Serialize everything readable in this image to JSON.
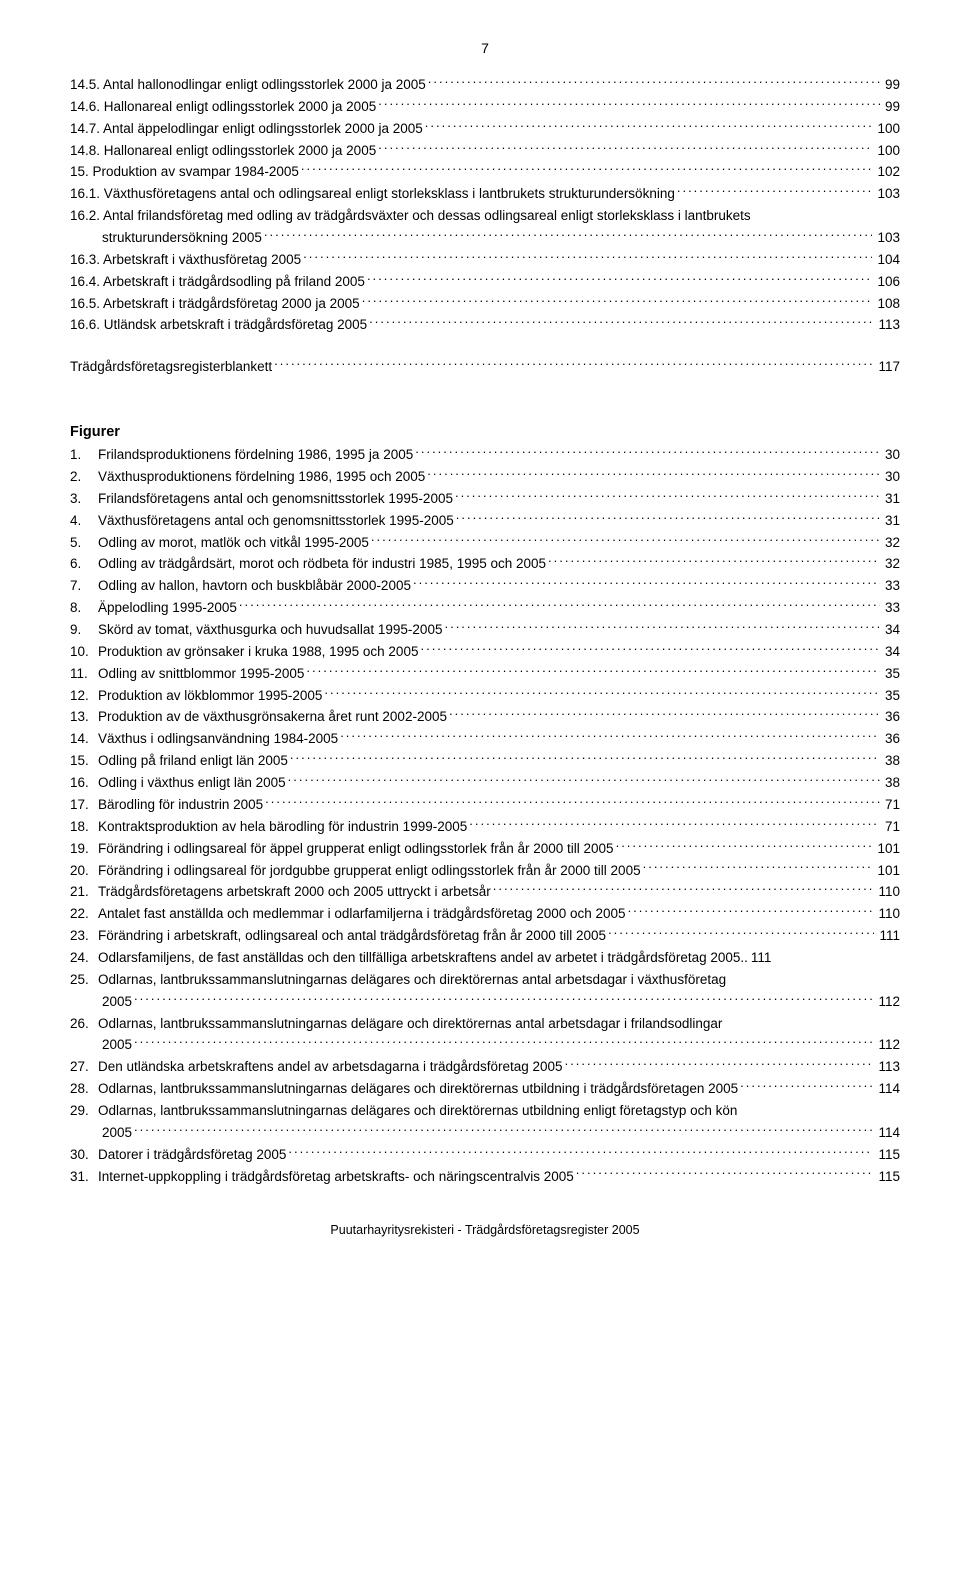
{
  "page_number": "7",
  "toc_upper": [
    {
      "label": "14.5. Antal hallonodlingar enligt odlingsstorlek 2000 ja 2005",
      "page": "99",
      "indent": 0
    },
    {
      "label": "14.6. Hallonareal enligt odlingsstorlek 2000 ja 2005",
      "page": "99",
      "indent": 0
    },
    {
      "label": "14.7. Antal äppelodlingar enligt odlingsstorlek 2000 ja 2005",
      "page": "100",
      "indent": 0
    },
    {
      "label": "14.8. Hallonareal enligt odlingsstorlek 2000 ja 2005",
      "page": "100",
      "indent": 0
    },
    {
      "label": "15. Produktion av svampar 1984-2005",
      "page": "102",
      "indent": 0
    },
    {
      "label": "16.1. Växthusföretagens antal och odlingsareal enligt storleksklass i lantbrukets strukturundersökning",
      "page": "103",
      "indent": 0
    },
    {
      "label": "16.2. Antal frilandsföretag med odling av trädgårdsväxter och dessas odlingsareal enligt storleksklass i lantbrukets",
      "page": "",
      "indent": 0,
      "nopage": true
    },
    {
      "label": "strukturundersökning 2005",
      "page": "103",
      "indent": 1
    },
    {
      "label": "16.3. Arbetskraft i växthusföretag 2005",
      "page": "104",
      "indent": 0
    },
    {
      "label": "16.4. Arbetskraft i trädgårdsodling på friland 2005",
      "page": "106",
      "indent": 0
    },
    {
      "label": "16.5. Arbetskraft i trädgårdsföretag 2000 ja  2005",
      "page": "108",
      "indent": 0
    },
    {
      "label": "16.6. Utländsk arbetskraft i trädgårdsföretag  2005",
      "page": "113",
      "indent": 0
    }
  ],
  "toc_mid": [
    {
      "label": "Trädgårdsföretagsregisterblankett",
      "page": "117",
      "indent": 0
    }
  ],
  "figurer_title": "Figurer",
  "figurer": [
    {
      "num": "1.",
      "label": "Frilandsproduktionens fördelning 1986, 1995 ja 2005",
      "page": "30"
    },
    {
      "num": "2.",
      "label": "Växthusproduktionens fördelning 1986, 1995 och 2005",
      "page": "30"
    },
    {
      "num": "3.",
      "label": "Frilandsföretagens antal och genomsnittsstorlek 1995-2005",
      "page": "31"
    },
    {
      "num": "4.",
      "label": "Växthusföretagens antal och genomsnittsstorlek 1995-2005",
      "page": "31"
    },
    {
      "num": "5.",
      "label": "Odling av morot, matlök och vitkål 1995-2005",
      "page": "32"
    },
    {
      "num": "6.",
      "label": "Odling av trädgårdsärt, morot och rödbeta för industri 1985, 1995 och  2005",
      "page": "32"
    },
    {
      "num": "7.",
      "label": "Odling av hallon, havtorn och buskblåbär 2000-2005",
      "page": "33"
    },
    {
      "num": "8.",
      "label": "Äppelodling 1995-2005",
      "page": "33"
    },
    {
      "num": "9.",
      "label": "Skörd av tomat, växthusgurka och huvudsallat 1995-2005",
      "page": "34"
    },
    {
      "num": "10.",
      "label": "Produktion av grönsaker i kruka 1988, 1995 och 2005",
      "page": "34"
    },
    {
      "num": "11.",
      "label": "Odling av snittblommor 1995-2005",
      "page": "35"
    },
    {
      "num": "12.",
      "label": "Produktion av lökblommor 1995-2005",
      "page": "35"
    },
    {
      "num": "13.",
      "label": "Produktion av de växthusgrönsakerna året runt 2002-2005",
      "page": "36"
    },
    {
      "num": "14.",
      "label": "Växthus i odlingsanvändning 1984-2005",
      "page": "36"
    },
    {
      "num": "15.",
      "label": "Odling på friland enligt län 2005",
      "page": "38"
    },
    {
      "num": "16.",
      "label": "Odling i växthus enligt län 2005",
      "page": "38"
    },
    {
      "num": "17.",
      "label": "Bärodling för industrin 2005",
      "page": "71"
    },
    {
      "num": "18.",
      "label": "Kontraktsproduktion av hela bärodling för industrin 1999-2005",
      "page": "71"
    },
    {
      "num": "19.",
      "label": "Förändring i odlingsareal för äppel grupperat enligt odlingsstorlek från år 2000 till 2005",
      "page": "101"
    },
    {
      "num": "20.",
      "label": "Förändring i odlingsareal för jordgubbe grupperat enligt odlingsstorlek från år 2000 till 2005",
      "page": "101"
    },
    {
      "num": "21.",
      "label": "Trädgårdsföretagens arbetskraft 2000 och 2005 uttryckt i arbetsår",
      "page": "110"
    },
    {
      "num": "22.",
      "label": "Antalet fast anställda och medlemmar i odlarfamiljerna i trädgårdsföretag 2000 och 2005",
      "page": "110"
    },
    {
      "num": "23.",
      "label": "Förändring i arbetskraft, odlingsareal och antal trädgårdsföretag från år 2000 till 2005",
      "page": "111"
    },
    {
      "num": "24.",
      "label": "Odlarsfamiljens, de fast anställdas och den tillfälliga arbetskraftens andel av arbetet i trädgårdsföretag 2005",
      "page": "111",
      "tight": true
    },
    {
      "num": "25.",
      "label": "Odlarnas, lantbrukssammanslutningarnas delägares och direktörernas antal arbetsdagar i växthusföretag",
      "page": "",
      "nopage": true
    },
    {
      "num": "",
      "label": "2005",
      "page": "112",
      "cont": true
    },
    {
      "num": "26.",
      "label": "Odlarnas, lantbrukssammanslutningarnas delägare och direktörernas antal arbetsdagar i frilandsodlingar",
      "page": "",
      "nopage": true
    },
    {
      "num": "",
      "label": "2005",
      "page": "112",
      "cont": true
    },
    {
      "num": "27.",
      "label": "Den utländska arbetskraftens andel av arbetsdagarna i trädgårdsföretag 2005",
      "page": "113"
    },
    {
      "num": "28.",
      "label": "Odlarnas, lantbrukssammanslutningarnas delägares och direktörernas utbildning i trädgårdsföretagen 2005",
      "page": "114"
    },
    {
      "num": "29.",
      "label": "Odlarnas, lantbrukssammanslutningarnas delägares och direktörernas utbildning enligt företagstyp och kön",
      "page": "",
      "nopage": true
    },
    {
      "num": "",
      "label": "2005",
      "page": "114",
      "cont": true
    },
    {
      "num": "30.",
      "label": "Datorer i trädgårdsföretag 2005",
      "page": "115"
    },
    {
      "num": "31.",
      "label": "Internet-uppkoppling i trädgårdsföretag arbetskrafts- och näringscentralvis 2005",
      "page": "115"
    }
  ],
  "footer": "Puutarhayritysrekisteri - Trädgårdsföretagsregister 2005"
}
